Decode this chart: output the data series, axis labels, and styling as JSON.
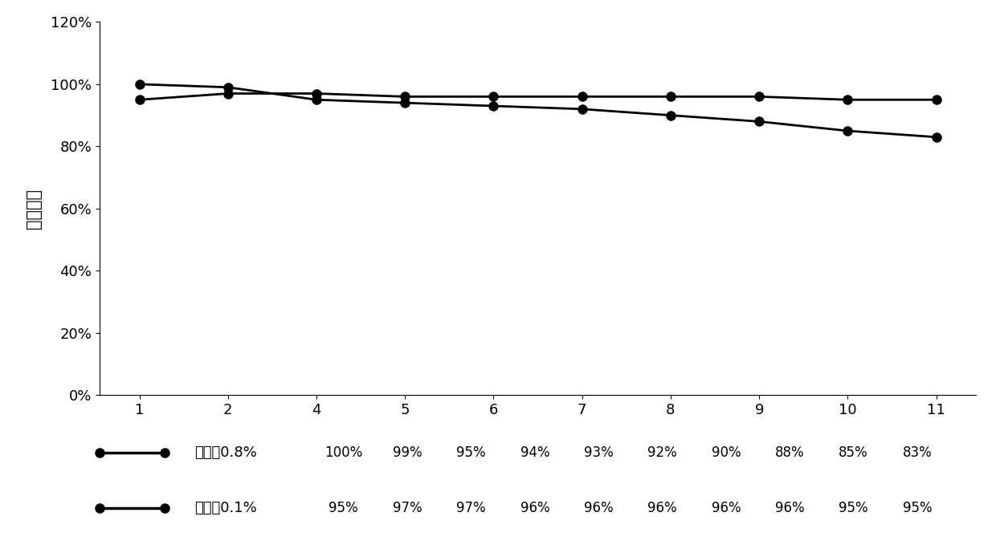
{
  "x_labels": [
    "1",
    "2",
    "4",
    "5",
    "6",
    "7",
    "8",
    "9",
    "10",
    "11"
  ],
  "x_positions": [
    1,
    2,
    3,
    4,
    5,
    6,
    7,
    8,
    9,
    10
  ],
  "series1_label": "含水率0.8%",
  "series1_values": [
    1.0,
    0.99,
    0.95,
    0.94,
    0.93,
    0.92,
    0.9,
    0.88,
    0.85,
    0.83
  ],
  "series1_color": "#000000",
  "series2_label": "含水率0.1%",
  "series2_values": [
    0.95,
    0.97,
    0.97,
    0.96,
    0.96,
    0.96,
    0.96,
    0.96,
    0.95,
    0.95
  ],
  "series2_color": "#000000",
  "ylabel": "处理效率",
  "ylim": [
    0,
    1.2
  ],
  "yticks": [
    0,
    0.2,
    0.4,
    0.6,
    0.8,
    1.0,
    1.2
  ],
  "ytick_labels": [
    "0%",
    "20%",
    "40%",
    "60%",
    "80%",
    "100%",
    "120%"
  ],
  "background_color": "#ffffff",
  "legend1_values": [
    "100%",
    "99%",
    "95%",
    "94%",
    "93%",
    "92%",
    "90%",
    "88%",
    "85%",
    "83%"
  ],
  "legend2_values": [
    "95%",
    "97%",
    "97%",
    "96%",
    "96%",
    "96%",
    "96%",
    "96%",
    "95%",
    "95%"
  ]
}
